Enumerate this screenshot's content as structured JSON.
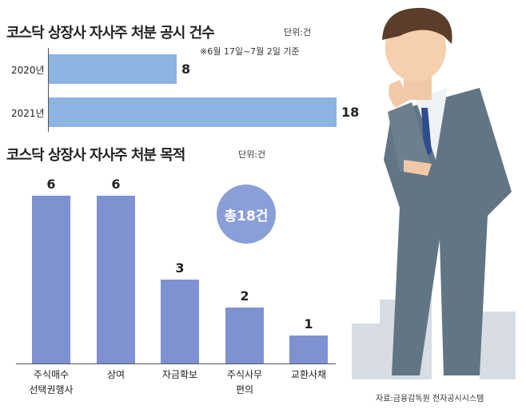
{
  "chart_data": [
    {
      "type": "bar",
      "orientation": "horizontal",
      "title": "코스닥 상장사 자사주 처분 공시 건수",
      "unit": "단위:건",
      "note": "※6월 17일~7월 2일 기준",
      "categories": [
        "2020년",
        "2021년"
      ],
      "values": [
        8,
        18
      ],
      "color": "#8db3e0"
    },
    {
      "type": "bar",
      "orientation": "vertical",
      "title": "코스닥 상장사 자사주 처분 목적",
      "unit": "단위:건",
      "annotation": "총18건",
      "categories": [
        "주식매수\n선택권행사",
        "상여",
        "자금확보",
        "주식사무\n편의",
        "교환사채"
      ],
      "values": [
        6,
        6,
        3,
        2,
        1
      ],
      "color": "#7e92d2",
      "source": "자료:금융감독원 전자공시시스템"
    }
  ]
}
